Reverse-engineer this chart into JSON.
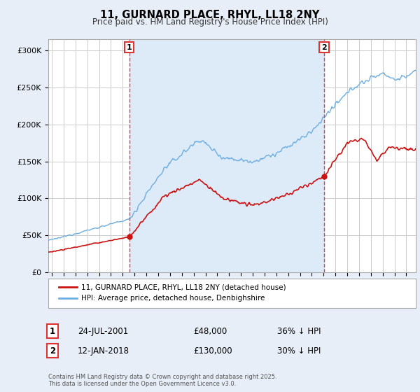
{
  "title": "11, GURNARD PLACE, RHYL, LL18 2NY",
  "subtitle": "Price paid vs. HM Land Registry's House Price Index (HPI)",
  "ylabel_ticks": [
    "£0",
    "£50K",
    "£100K",
    "£150K",
    "£200K",
    "£250K",
    "£300K"
  ],
  "ytick_values": [
    0,
    50000,
    100000,
    150000,
    200000,
    250000,
    300000
  ],
  "ylim": [
    0,
    315000
  ],
  "xlim_start": 1994.7,
  "xlim_end": 2025.8,
  "hpi_color": "#6daee0",
  "price_color": "#cc1111",
  "vline_color": "#dd3333",
  "shade_color": "#ddeaf8",
  "marker1_date": 2001.56,
  "marker1_price": 48000,
  "marker2_date": 2018.04,
  "marker2_price": 130000,
  "legend_line1": "11, GURNARD PLACE, RHYL, LL18 2NY (detached house)",
  "legend_line2": "HPI: Average price, detached house, Denbighshire",
  "table_row1": [
    "1",
    "24-JUL-2001",
    "£48,000",
    "36% ↓ HPI"
  ],
  "table_row2": [
    "2",
    "12-JAN-2018",
    "£130,000",
    "30% ↓ HPI"
  ],
  "footnote": "Contains HM Land Registry data © Crown copyright and database right 2025.\nThis data is licensed under the Open Government Licence v3.0.",
  "bg_color": "#e8eef8",
  "plot_bg_color": "#ffffff",
  "grid_color": "#cccccc",
  "legend_border_color": "#aaaaaa"
}
